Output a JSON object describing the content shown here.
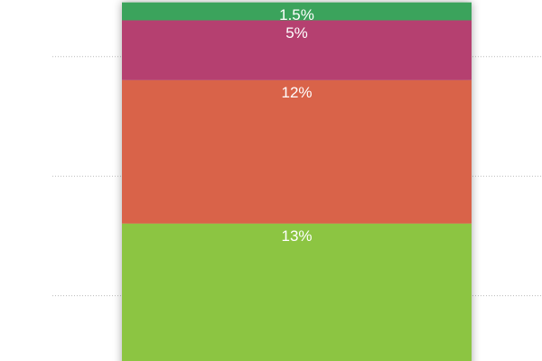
{
  "chart_data": {
    "type": "stacked_bar",
    "categories": [
      null
    ],
    "series": [
      {
        "color": "#8cc543",
        "values": [
          13
        ],
        "value_labels": [
          "13%"
        ]
      },
      {
        "color": "#d9644a",
        "values": [
          12
        ],
        "value_labels": [
          "12%"
        ]
      },
      {
        "color": "#b5406f",
        "values": [
          5
        ],
        "value_labels": [
          "5%"
        ]
      },
      {
        "color": "#3aa35b",
        "values": [
          1.5
        ],
        "value_labels": [
          "1.5%"
        ]
      }
    ],
    "ylim": [
      1.5,
      31.7
    ],
    "yticks": [
      7,
      17,
      27
    ],
    "grid": true
  }
}
